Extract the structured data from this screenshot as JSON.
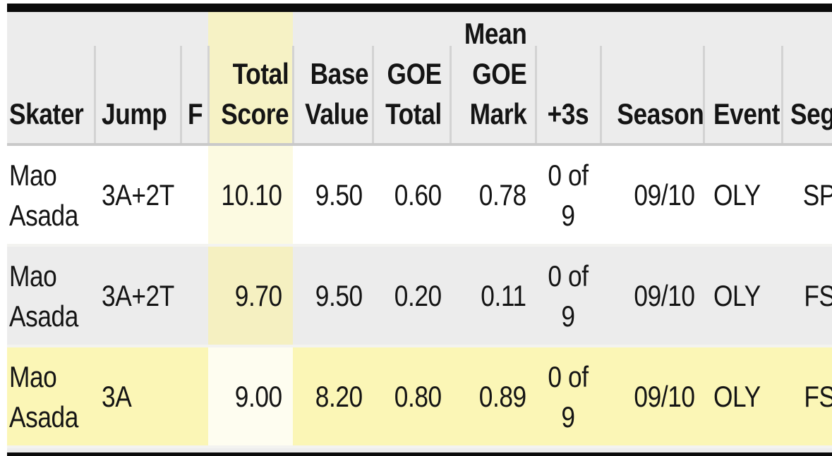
{
  "table": {
    "columns": [
      {
        "id": "skater",
        "label": "Skater",
        "label_lines": [
          "Skater"
        ]
      },
      {
        "id": "jump",
        "label": "Jump",
        "label_lines": [
          "Jump"
        ]
      },
      {
        "id": "f",
        "label": "F",
        "label_lines": [
          "F"
        ]
      },
      {
        "id": "total_score",
        "label": "Total Score",
        "label_lines": [
          "Total",
          "Score"
        ],
        "highlighted": true
      },
      {
        "id": "base_value",
        "label": "Base Value",
        "label_lines": [
          "Base",
          "Value"
        ]
      },
      {
        "id": "goe_total",
        "label": "GOE Total",
        "label_lines": [
          "GOE",
          "Total"
        ]
      },
      {
        "id": "mean_goe_mark",
        "label": "Mean GOE Mark",
        "label_lines": [
          "Mean",
          "GOE",
          "Mark"
        ]
      },
      {
        "id": "plus_3s",
        "label": "+3s",
        "label_lines": [
          "+3s"
        ]
      },
      {
        "id": "season",
        "label": "Season",
        "label_lines": [
          "Season"
        ]
      },
      {
        "id": "event",
        "label": "Event",
        "label_lines": [
          "Event"
        ]
      },
      {
        "id": "seg",
        "label": "Seg",
        "label_lines": [
          "Seg"
        ]
      }
    ],
    "rows": [
      {
        "skater": "Mao Asada",
        "jump": "3A+2T",
        "f": "",
        "total_score": "10.10",
        "base_value": "9.50",
        "goe_total": "0.60",
        "mean_goe_mark": "0.78",
        "plus_3s": "0 of 9",
        "season": "09/10",
        "event": "OLY",
        "seg": "SP",
        "row_highlighted": false
      },
      {
        "skater": "Mao Asada",
        "jump": "3A+2T",
        "f": "",
        "total_score": "9.70",
        "base_value": "9.50",
        "goe_total": "0.20",
        "mean_goe_mark": "0.11",
        "plus_3s": "0 of 9",
        "season": "09/10",
        "event": "OLY",
        "seg": "FS",
        "row_highlighted": false
      },
      {
        "skater": "Mao Asada",
        "jump": "3A",
        "f": "",
        "total_score": "9.00",
        "base_value": "8.20",
        "goe_total": "0.80",
        "mean_goe_mark": "0.89",
        "plus_3s": "0 of 9",
        "season": "09/10",
        "event": "OLY",
        "seg": "FS",
        "row_highlighted": true
      }
    ]
  },
  "colors": {
    "top_bottom_rule": "#0b0b0b",
    "header_bg": "#ececec",
    "row_alt_bg": "#ececec",
    "row_highlight_bg": "#fbf6b6",
    "column_highlight_header": "#f6f2c5",
    "column_highlight_on_white_row": "#fcfae1",
    "column_highlight_on_gray_row": "#f5f0c1",
    "column_highlight_on_highlight_row": "#fefdf0",
    "header_rule": "#c9c9c9",
    "column_separator": "#d3d3d3",
    "text": "#141414"
  }
}
